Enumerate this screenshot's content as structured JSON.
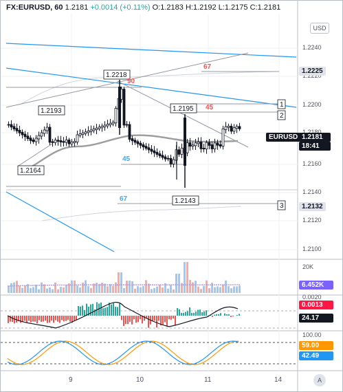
{
  "header": {
    "symbol": "FX:EURUSD, 60",
    "last": "1.2181",
    "change": "+0.0014 (+0.11%)",
    "o_label": "O:",
    "o": "1.2183",
    "h_label": "H:",
    "h": "1.2192",
    "l_label": "L:",
    "l": "1.2175",
    "c_label": "C:",
    "c": "1.2181"
  },
  "buttons": {
    "currency": "USD",
    "auto": "A"
  },
  "price_axis": {
    "ticks": [
      "1.2240",
      "1.2220",
      "1.2200",
      "1.2180",
      "1.2160",
      "1.2140",
      "1.2120",
      "1.2100"
    ],
    "tags": [
      {
        "text": "1.2225",
        "kind": "level"
      },
      {
        "text": "EURUSD",
        "kind": "symbol"
      },
      {
        "text": "1.2181",
        "kind": "price"
      },
      {
        "text": "18:41",
        "kind": "countdown"
      },
      {
        "text": "1.2132",
        "kind": "level"
      }
    ]
  },
  "volume_axis": {
    "tick": "20K",
    "value": "6.452K"
  },
  "macd_axis": {
    "tick": "0.0020",
    "value": "0.0013",
    "value2": "24.17"
  },
  "stoch_axis": {
    "tick": "100.00",
    "k": "59.00",
    "d": "42.49"
  },
  "time_axis": {
    "ticks": [
      "9",
      "10",
      "11",
      "14"
    ]
  },
  "annotations": {
    "price_labels": [
      "1.2218",
      "1.2193",
      "1.2195",
      "1.2164",
      "1.2143"
    ],
    "numbers": [
      "90",
      "67",
      "45",
      "45",
      "67"
    ],
    "boxes": [
      "1",
      "2",
      "3"
    ]
  },
  "colors": {
    "up": "#26a69a",
    "down": "#ef5350",
    "blue_line": "#2196f3",
    "gray_line": "#9598a1",
    "ma": "#9e9e9e",
    "macd_line": "#131722",
    "stoch_k": "#2196f3",
    "stoch_d": "#ff9800"
  }
}
